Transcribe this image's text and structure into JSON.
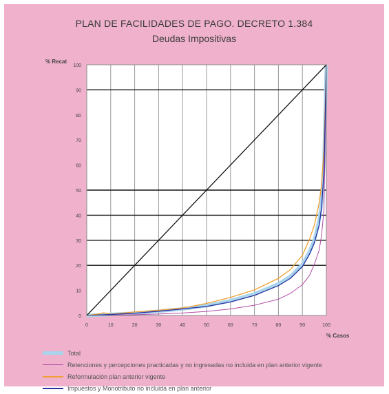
{
  "chart_data": {
    "type": "line",
    "title": "PLAN DE FACILIDADES DE PAGO. DECRETO 1.384",
    "subtitle": "Deudas Impositivas",
    "ylabel": "% Recat",
    "xlabel": "% Casos",
    "xlim": [
      0,
      100
    ],
    "ylim": [
      0,
      100
    ],
    "x_ticks": [
      "0",
      "10",
      "20",
      "30",
      "40",
      "50",
      "60",
      "70",
      "80",
      "90",
      "100"
    ],
    "y_ticks": [
      "0",
      "10",
      "20",
      "30",
      "40",
      "50",
      "60",
      "70",
      "80",
      "90",
      "100"
    ],
    "horizontal_reference_lines": [
      20,
      30,
      40,
      50,
      90
    ],
    "grid": "vertical",
    "legend_position": "bottom",
    "series": [
      {
        "name": "Total",
        "color": "#a8d4ec",
        "width": 5,
        "x": [
          0,
          10,
          20,
          30,
          40,
          50,
          60,
          70,
          80,
          85,
          90,
          93,
          95,
          97,
          98,
          99,
          100
        ],
        "y": [
          0,
          0.4,
          0.9,
          1.7,
          2.6,
          3.9,
          5.9,
          8.6,
          12.6,
          15.6,
          20.4,
          25.5,
          30.2,
          38,
          45,
          60,
          100
        ]
      },
      {
        "name": "Retenciones y percepciones practicadas y no ingresadas no incluida en plan anterior vigente",
        "color": "#b04aa4",
        "width": 1,
        "x": [
          0,
          10,
          20,
          30,
          40,
          50,
          60,
          70,
          80,
          85,
          90,
          93,
          95,
          97,
          98,
          99,
          100
        ],
        "y": [
          0,
          0.1,
          0.3,
          0.6,
          1.0,
          1.6,
          2.6,
          4.1,
          6.5,
          8.8,
          12.3,
          16,
          20.5,
          26,
          32,
          42,
          100
        ]
      },
      {
        "name": "Reformulación plan anterior vigente",
        "color": "#f0a030",
        "width": 1.3,
        "x": [
          0,
          5,
          7,
          10,
          20,
          30,
          40,
          50,
          60,
          70,
          80,
          85,
          90,
          93,
          95,
          97,
          98,
          99,
          100
        ],
        "y": [
          0,
          0.6,
          1.1,
          0.5,
          1.4,
          2.1,
          3.0,
          4.8,
          7.2,
          10.2,
          14.8,
          18.3,
          24,
          30.5,
          36,
          45,
          52,
          66,
          100
        ]
      },
      {
        "name": "Impuestos y Monotributo no incluida en plan anterior",
        "color": "#2a2fa0",
        "width": 1.3,
        "x": [
          0,
          10,
          20,
          30,
          40,
          50,
          60,
          70,
          80,
          85,
          90,
          93,
          95,
          97,
          98,
          99,
          100
        ],
        "y": [
          0,
          0.4,
          0.9,
          1.7,
          2.6,
          3.6,
          5.4,
          8.0,
          11.9,
          14.8,
          19.5,
          24.5,
          29,
          36,
          43,
          57,
          100
        ]
      },
      {
        "name": "",
        "color": "#111111",
        "width": 1.3,
        "x": [
          0,
          100
        ],
        "y": [
          0,
          100
        ]
      }
    ],
    "legend": [
      "Total",
      "Retenciones y percepciones practicadas y no ingresadas no incluida en plan anterior vigente",
      "Reformulación plan anterior vigente",
      "Impuestos y Monotributo no incluida en plan anterior"
    ],
    "colors": {
      "background": "#efb1cb",
      "plot_area": "#ffffff",
      "grid": "#9a9a9a",
      "reference": "#111111"
    }
  }
}
